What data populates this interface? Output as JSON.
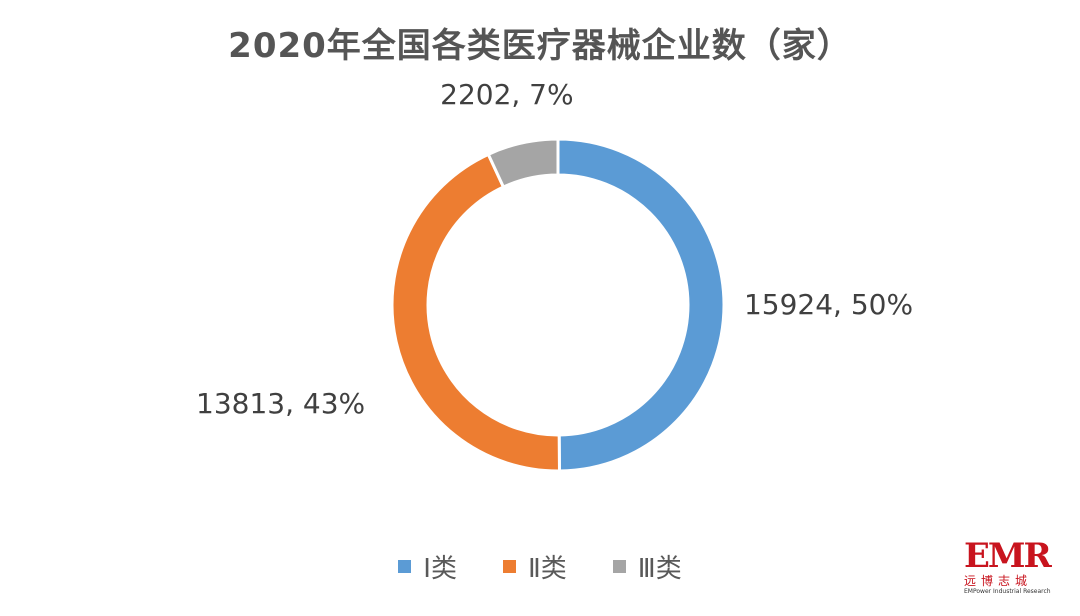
{
  "chart_data": {
    "type": "pie",
    "variant": "donut",
    "title": "2020年全国各类医疗器械企业数（家）",
    "categories": [
      "Ⅰ类",
      "Ⅱ类",
      "Ⅲ类"
    ],
    "values": [
      15924,
      13813,
      2202
    ],
    "percentages": [
      "50%",
      "43%",
      "7%"
    ],
    "data_labels": [
      "15924, 50%",
      "13813, 43%",
      "2202, 7%"
    ],
    "colors": [
      "#5B9BD5",
      "#ED7D31",
      "#A5A5A5"
    ],
    "legend_position": "bottom",
    "start_angle": "12 o'clock, clockwise"
  },
  "logo": {
    "mark": "EMR",
    "cn_text": "远博志城",
    "en_text": "EMPower Industrial Research"
  }
}
